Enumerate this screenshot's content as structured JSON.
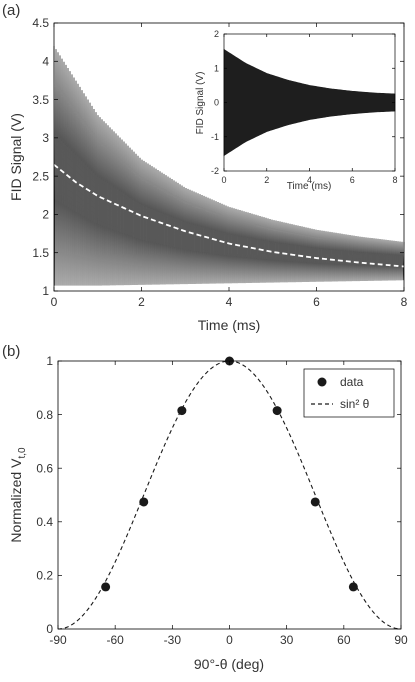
{
  "panels": {
    "a": {
      "label": "(a)"
    },
    "b": {
      "label": "(b)"
    }
  },
  "chart_data": [
    {
      "panel": "(a)",
      "type": "line",
      "xlabel": "Time (ms)",
      "ylabel": "FID Signal (V)",
      "xlim": [
        0,
        8
      ],
      "ylim": [
        1,
        4.5
      ],
      "xticks": [
        "0",
        "2",
        "4",
        "6",
        "8"
      ],
      "yticks": [
        "1",
        "1.5",
        "2",
        "2.5",
        "3",
        "3.5",
        "4",
        "4.5"
      ],
      "grid": false,
      "colors": {
        "oscillation": "#111111",
        "envelope_fit": "#ffffff"
      },
      "series": [
        {
          "style": "solid",
          "description_points": {
            "x": [
              0,
              1,
              2,
              3,
              4,
              5,
              6,
              7,
              8
            ],
            "upper": [
              4.2,
              3.3,
              2.72,
              2.35,
              2.1,
              1.93,
              1.8,
              1.71,
              1.64
            ],
            "lower": [
              1.07,
              1.07,
              1.08,
              1.09,
              1.1,
              1.11,
              1.12,
              1.13,
              1.14
            ]
          },
          "oscillation_cycles": 175
        },
        {
          "style": "dashed",
          "x": [
            0,
            0.5,
            1,
            2,
            3,
            4,
            5,
            6,
            7,
            8
          ],
          "y": [
            2.65,
            2.42,
            2.24,
            1.98,
            1.78,
            1.62,
            1.51,
            1.43,
            1.37,
            1.32
          ]
        }
      ],
      "inset": {
        "type": "line",
        "xlabel": "Time (ms)",
        "ylabel": "FID Signal (V)",
        "xlim": [
          0,
          8
        ],
        "ylim": [
          -2,
          2
        ],
        "xticks": [
          "0",
          "2",
          "4",
          "6",
          "8"
        ],
        "yticks": [
          "-2",
          "-1",
          "0",
          "1",
          "2"
        ],
        "envelope": {
          "x": [
            0,
            1,
            2,
            3,
            4,
            5,
            6,
            7,
            8
          ],
          "amplitude": [
            1.55,
            1.15,
            0.85,
            0.65,
            0.5,
            0.4,
            0.33,
            0.28,
            0.25
          ]
        }
      }
    },
    {
      "panel": "(b)",
      "type": "scatter",
      "xlabel": "90°-θ (deg)",
      "ylabel": "Normalized V",
      "ylabel_sub": "t,0",
      "xlim": [
        -90,
        90
      ],
      "ylim": [
        0,
        1
      ],
      "xticks": [
        "-90",
        "-60",
        "-30",
        "0",
        "30",
        "60",
        "90"
      ],
      "yticks": [
        "0",
        "0.2",
        "0.4",
        "0.6",
        "0.8",
        "1"
      ],
      "grid": false,
      "legend_position": "top-right",
      "series": [
        {
          "name": "data",
          "style": "marker",
          "x": [
            -65,
            -45,
            -25,
            0,
            25,
            45,
            65
          ],
          "y": [
            0.157,
            0.474,
            0.815,
            1.0,
            0.815,
            0.474,
            0.157
          ]
        },
        {
          "name": "sin² θ",
          "style": "dashed",
          "function": "cos^2(x)",
          "x": [
            -90,
            -75,
            -60,
            -45,
            -30,
            -15,
            0,
            15,
            30,
            45,
            60,
            75,
            90
          ],
          "y": [
            0,
            0.067,
            0.25,
            0.5,
            0.75,
            0.933,
            1,
            0.933,
            0.75,
            0.5,
            0.25,
            0.067,
            0
          ]
        }
      ],
      "legend": {
        "entries": [
          "data",
          "sin² θ"
        ]
      }
    }
  ]
}
